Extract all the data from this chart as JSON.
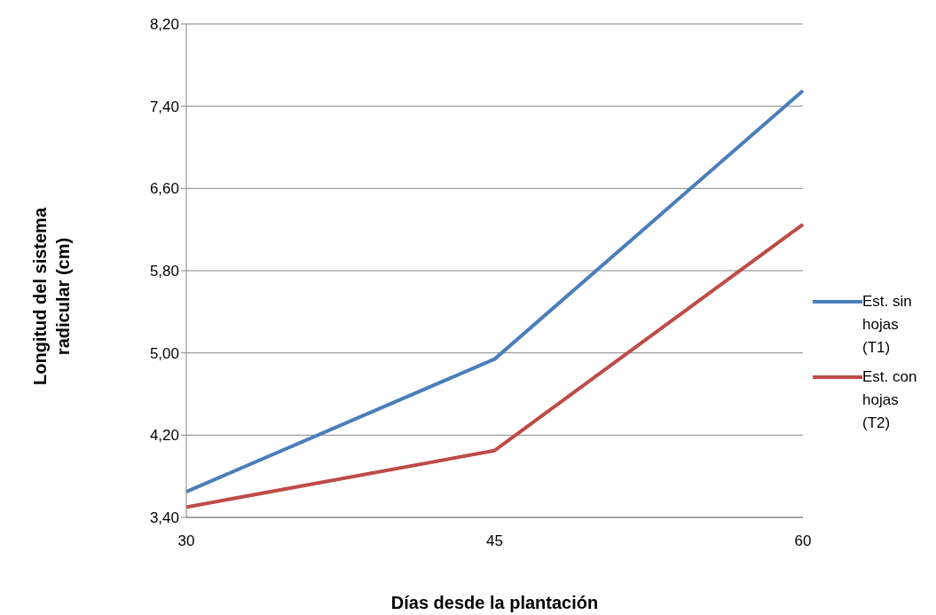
{
  "chart_data": {
    "type": "line",
    "xlabel": "Días desde la plantación",
    "ylabel": "Longitud del sistema radicular (cm)",
    "categories": [
      "30",
      "45",
      "60"
    ],
    "series": [
      {
        "name": "Est. sin hojas (T1)",
        "color": "#4a7ebb",
        "values": [
          3.65,
          4.94,
          7.55
        ]
      },
      {
        "name": "Est. con hojas (T2)",
        "color": "#be4b48",
        "values": [
          3.5,
          4.05,
          6.25
        ]
      }
    ],
    "ylim": [
      3.4,
      8.2
    ],
    "yticks": [
      {
        "value": 3.4,
        "label": "3,40"
      },
      {
        "value": 4.2,
        "label": "4,20"
      },
      {
        "value": 5.0,
        "label": "5,00"
      },
      {
        "value": 5.8,
        "label": "5,80"
      },
      {
        "value": 6.6,
        "label": "6,60"
      },
      {
        "value": 7.4,
        "label": "7,40"
      },
      {
        "value": 8.2,
        "label": "8,20"
      }
    ],
    "grid": "y",
    "legend": "right"
  }
}
